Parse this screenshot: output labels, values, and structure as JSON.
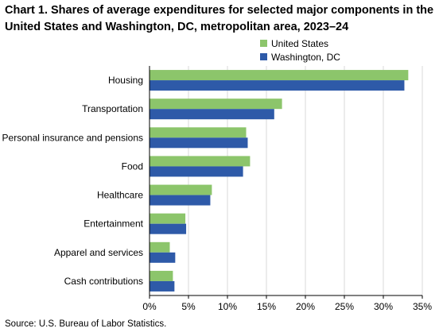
{
  "chart_data": {
    "type": "bar",
    "orientation": "horizontal",
    "title_lines": [
      "Chart 1. Shares of average expenditures for selected major components in the",
      "United States and Washington, DC, metropolitan area, 2023–24"
    ],
    "categories": [
      "Housing",
      "Transportation",
      "Personal insurance and pensions",
      "Food",
      "Healthcare",
      "Entertainment",
      "Apparel and services",
      "Cash contributions"
    ],
    "series": [
      {
        "name": "United States",
        "color": "#8cc56b",
        "values": [
          33.2,
          17.0,
          12.4,
          12.9,
          8.0,
          4.6,
          2.6,
          3.0
        ]
      },
      {
        "name": "Washington, DC",
        "color": "#2e5aa8",
        "values": [
          32.7,
          16.0,
          12.6,
          12.0,
          7.8,
          4.7,
          3.3,
          3.2
        ]
      }
    ],
    "xlim": [
      0,
      35
    ],
    "xticks": [
      0,
      5,
      10,
      15,
      20,
      25,
      30,
      35
    ],
    "xtick_labels": [
      "0%",
      "5%",
      "10%",
      "15%",
      "20%",
      "25%",
      "30%",
      "35%"
    ],
    "legend_position": "top-right",
    "grid": "vertical"
  },
  "source": "Source: U.S. Bureau of Labor Statistics."
}
